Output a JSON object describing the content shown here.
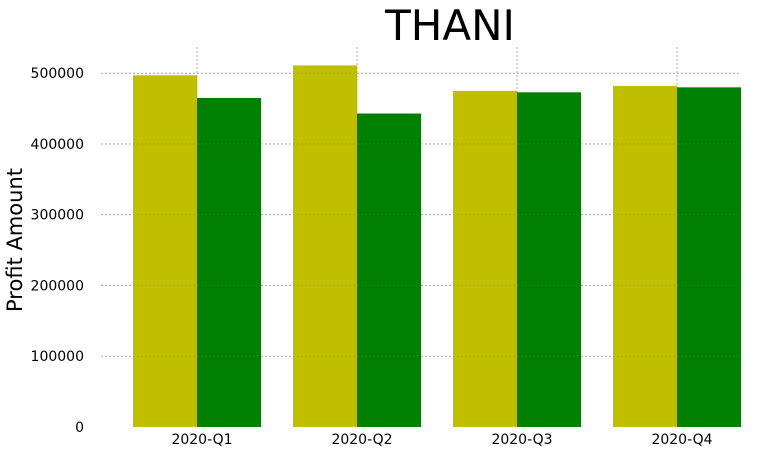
{
  "chart_data": {
    "type": "bar",
    "title": "THANI",
    "xlabel": "",
    "ylabel": "Profit Amount",
    "categories": [
      "2020-Q1",
      "2020-Q2",
      "2020-Q3",
      "2020-Q4"
    ],
    "series": [
      {
        "values": [
          497000,
          511000,
          475000,
          482000
        ],
        "color": "#bfbf00"
      },
      {
        "values": [
          465000,
          443000,
          473000,
          480000
        ],
        "color": "#008000"
      }
    ],
    "ylim": [
      0,
      537000
    ],
    "yticks": [
      0,
      100000,
      200000,
      300000,
      400000,
      500000
    ],
    "ytick_labels": [
      "0",
      "100000",
      "200000",
      "300000",
      "400000",
      "500000"
    ],
    "grid": true,
    "legend": "none"
  }
}
